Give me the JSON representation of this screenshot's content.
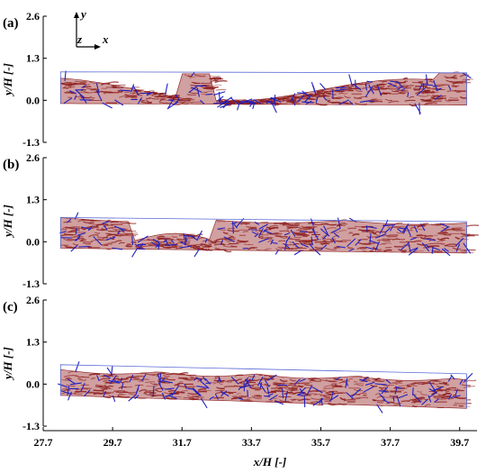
{
  "colors": {
    "fluid": "#8b1a1a",
    "fluid_light": "#c98f8f",
    "vectors": "#2020c0",
    "outline": "#5b6bd6"
  },
  "coord_system": {
    "y_label": "y",
    "z_label": "z",
    "x_label": "x"
  },
  "chart_data": [
    {
      "type": "scatter",
      "panel_label": "(a)",
      "ylabel": "y/H [-]",
      "yticks": [
        2.6,
        1.3,
        0,
        -1.3
      ],
      "ylim": [
        -1.3,
        2.6
      ],
      "xlim": [
        27.7,
        40.2
      ],
      "top_boundary": [
        [
          28.2,
          0.88
        ],
        [
          39.9,
          0.85
        ]
      ],
      "bottom_boundary": [
        [
          28.2,
          -0.1
        ],
        [
          39.9,
          -0.15
        ]
      ]
    },
    {
      "type": "scatter",
      "panel_label": "(b)",
      "ylabel": "y/H [-]",
      "yticks": [
        2.6,
        1.3,
        0,
        -1.3
      ],
      "ylim": [
        -1.3,
        2.6
      ],
      "xlim": [
        27.7,
        40.2
      ],
      "top_boundary": [
        [
          28.2,
          0.75
        ],
        [
          39.9,
          0.62
        ]
      ],
      "bottom_boundary": [
        [
          28.2,
          -0.2
        ],
        [
          39.9,
          -0.35
        ]
      ]
    },
    {
      "type": "scatter",
      "panel_label": "(c)",
      "ylabel": "y/H [-]",
      "yticks": [
        2.6,
        1.3,
        0,
        -1.3
      ],
      "ylim": [
        -1.3,
        2.6
      ],
      "xlim": [
        27.7,
        40.2
      ],
      "top_boundary": [
        [
          28.2,
          0.6
        ],
        [
          39.9,
          0.32
        ]
      ],
      "bottom_boundary": [
        [
          28.2,
          -0.35
        ],
        [
          39.9,
          -0.75
        ]
      ]
    }
  ],
  "x_axis": {
    "xlabel": "x/H [-]",
    "xticks": [
      27.7,
      29.7,
      31.7,
      33.7,
      35.7,
      37.7,
      39.7
    ]
  }
}
